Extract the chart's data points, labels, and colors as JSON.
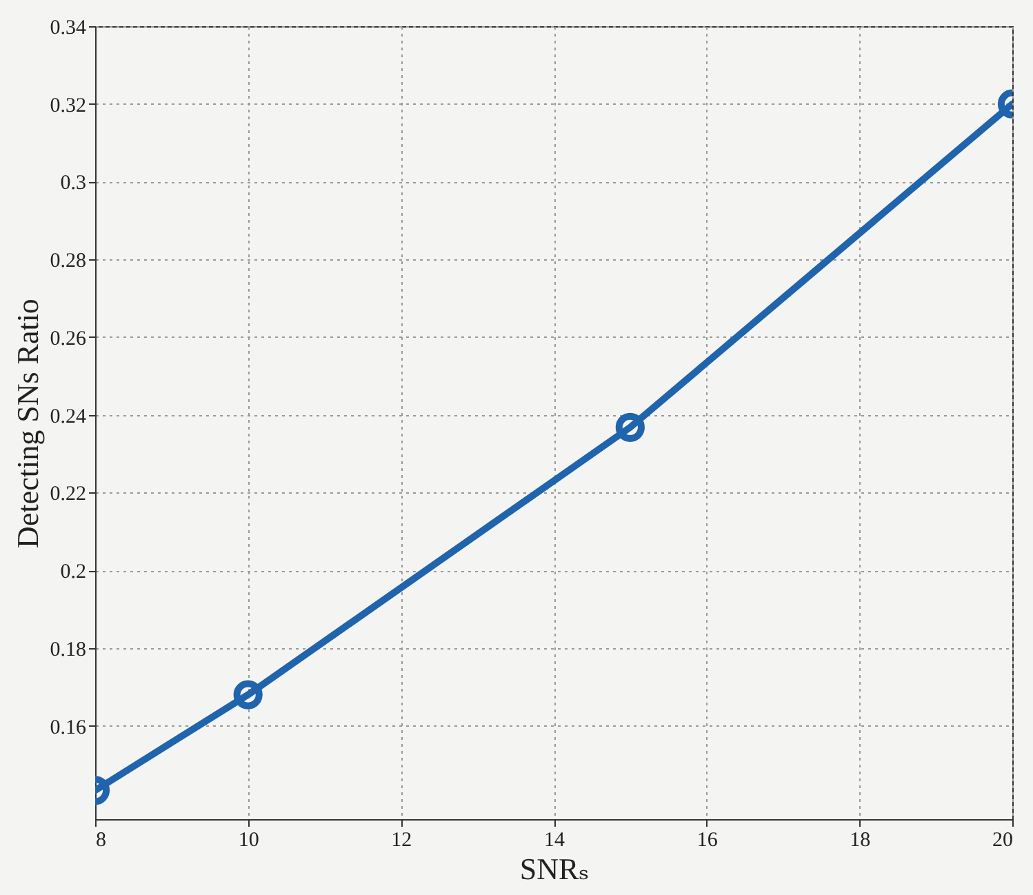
{
  "chart_data": {
    "type": "line",
    "xlabel": "SNRₛ",
    "ylabel": "Detecting SNs Ratio",
    "x": [
      8,
      10,
      15,
      20
    ],
    "series": [
      {
        "color": "#1f64ad",
        "values": [
          0.1434,
          0.168,
          0.2368,
          0.32
        ]
      }
    ],
    "xlim": [
      8,
      20
    ],
    "xticks": [
      8,
      10,
      12,
      14,
      16,
      18,
      20
    ],
    "ylim": [
      0.136,
      0.34
    ],
    "yticks": [
      0.16,
      0.18,
      0.2,
      0.22,
      0.24,
      0.26,
      0.28,
      0.3,
      0.32,
      0.34
    ],
    "grid": true,
    "marker": "circle",
    "line_style": "solid"
  }
}
